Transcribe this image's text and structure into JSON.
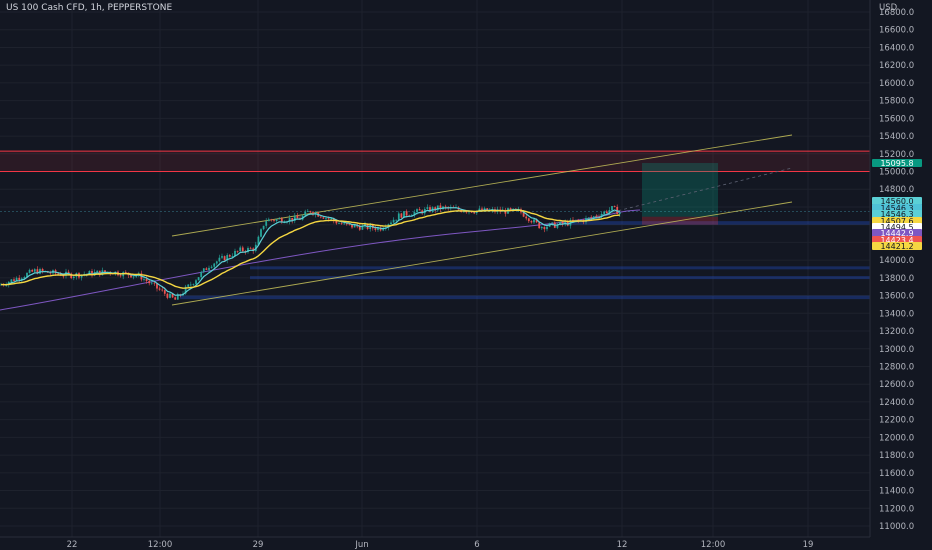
{
  "header": {
    "title": "US 100 Cash CFD, 1h, PEPPERSTONE"
  },
  "axis": {
    "currency": "USD",
    "y_ticks": [
      "16800.0",
      "16600.0",
      "16400.0",
      "16200.0",
      "16000.0",
      "15800.0",
      "15600.0",
      "15400.0",
      "15200.0",
      "15000.0",
      "14800.0",
      "14600.0",
      "14400.0",
      "14200.0",
      "14000.0",
      "13800.0",
      "13600.0",
      "13400.0",
      "13200.0",
      "13000.0",
      "12800.0",
      "12600.0",
      "12400.0",
      "12200.0",
      "12000.0",
      "11800.0",
      "11600.0",
      "11400.0",
      "11200.0",
      "11000.0"
    ],
    "x_ticks": [
      "22",
      "12:00",
      "29",
      "Jun",
      "6",
      "12",
      "12:00",
      "19"
    ]
  },
  "price_tags": [
    {
      "value": "15095.8",
      "bg": "#089981",
      "fg": "#ffffff"
    },
    {
      "value": "14560.0",
      "bg": "#5bd0d6",
      "fg": "#131722"
    },
    {
      "value": "14546.3",
      "bg": "#4fc3d8",
      "fg": "#131722"
    },
    {
      "value": "14546.3",
      "bg": "#5bd0d6",
      "fg": "#131722"
    },
    {
      "value": "14507.6",
      "bg": "#f5d742",
      "fg": "#131722"
    },
    {
      "value": "14494.5",
      "bg": "#ffffff",
      "fg": "#131722"
    },
    {
      "value": "14442.9",
      "bg": "#7e57c2",
      "fg": "#ffffff"
    },
    {
      "value": "14423.4",
      "bg": "#ef5350",
      "fg": "#ffffff"
    },
    {
      "value": "14421.2",
      "bg": "#f5d742",
      "fg": "#131722"
    }
  ],
  "colors": {
    "up": "#26a69a",
    "down": "#ef5350",
    "ema_short": "#5bd0d6",
    "ema_long": "#f5d742",
    "trend": "#7e57c2",
    "channel": "#c8c35a",
    "zone_red": "#f23645",
    "zone_blue": "#2962ff",
    "target": "#089981"
  },
  "chart_data": {
    "type": "candlestick",
    "symbol": "US 100 Cash CFD",
    "timeframe": "1h",
    "ylim": [
      11000,
      16800
    ],
    "y_axis_label": "USD",
    "series": {
      "price_path": [
        {
          "date": "May 18",
          "close": 13720
        },
        {
          "date": "May 19",
          "close": 13880
        },
        {
          "date": "May 20",
          "close": 13830
        },
        {
          "date": "May 21",
          "close": 13870
        },
        {
          "date": "May 22",
          "close": 13820
        },
        {
          "date": "May 23",
          "close": 13660
        },
        {
          "date": "May 24",
          "close": 13550
        },
        {
          "date": "May 25",
          "close": 13950
        },
        {
          "date": "May 26",
          "close": 14110
        },
        {
          "date": "May 27",
          "close": 14130
        },
        {
          "date": "May 28",
          "close": 14450
        },
        {
          "date": "May 29",
          "close": 14470
        },
        {
          "date": "May 30",
          "close": 14560
        },
        {
          "date": "May 31",
          "close": 14390
        },
        {
          "date": "Jun 1",
          "close": 14360
        },
        {
          "date": "Jun 2",
          "close": 14510
        },
        {
          "date": "Jun 5",
          "close": 14590
        },
        {
          "date": "Jun 6",
          "close": 14560
        },
        {
          "date": "Jun 7",
          "close": 14550
        },
        {
          "date": "Jun 8",
          "close": 14380
        },
        {
          "date": "Jun 9",
          "close": 14400
        },
        {
          "date": "Jun 12",
          "close": 14580
        }
      ]
    },
    "zones": [
      {
        "type": "resistance",
        "from": 15000,
        "to": 15230
      },
      {
        "type": "support",
        "from": 14400,
        "to": 14440
      },
      {
        "type": "support",
        "from": 13900,
        "to": 13930
      },
      {
        "type": "support",
        "from": 13790,
        "to": 13820
      },
      {
        "type": "support",
        "from": 13560,
        "to": 13600
      }
    ],
    "long_position": {
      "entry": 14490,
      "target": 15095.8
    },
    "price_levels": [
      15095.8,
      14560.0,
      14546.3,
      14546.3,
      14507.6,
      14494.5,
      14442.9,
      14423.4,
      14421.2
    ]
  }
}
